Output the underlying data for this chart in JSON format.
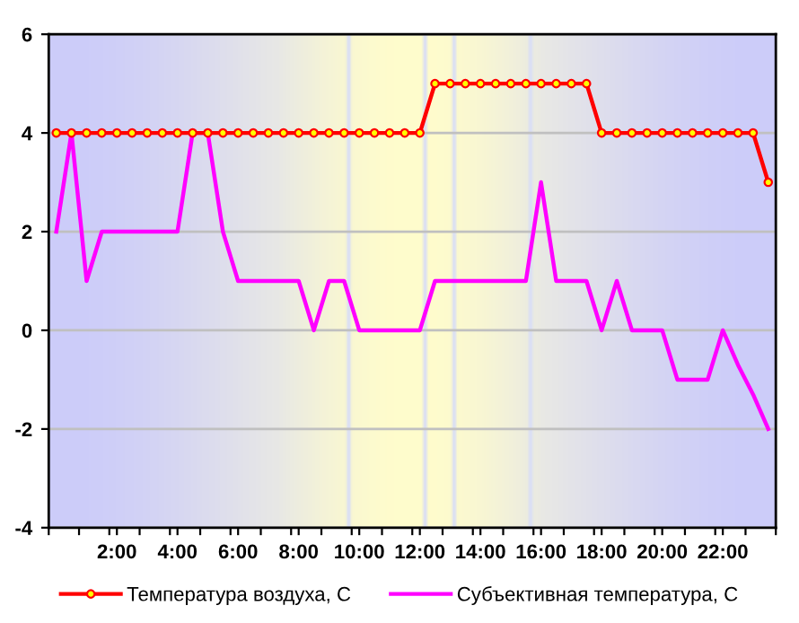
{
  "chart_data": {
    "type": "line",
    "x": [
      0,
      0.5,
      1,
      1.5,
      2,
      2.5,
      3,
      3.5,
      4,
      4.5,
      5,
      5.5,
      6,
      6.5,
      7,
      7.5,
      8,
      8.5,
      9,
      9.5,
      10,
      10.5,
      11,
      11.5,
      12,
      12.5,
      13,
      13.5,
      14,
      14.5,
      15,
      15.5,
      16,
      16.5,
      17,
      17.5,
      18,
      18.5,
      19,
      19.5,
      20,
      20.5,
      21,
      21.5,
      22,
      22.5,
      23,
      23.5
    ],
    "series": [
      {
        "name": "Температура воздуха, С",
        "color": "#ff0000",
        "marker": "circle",
        "values": [
          4,
          4,
          4,
          4,
          4,
          4,
          4,
          4,
          4,
          4,
          4,
          4,
          4,
          4,
          4,
          4,
          4,
          4,
          4,
          4,
          4,
          4,
          4,
          4,
          4,
          5,
          5,
          5,
          5,
          5,
          5,
          5,
          5,
          5,
          5,
          5,
          4,
          4,
          4,
          4,
          4,
          4,
          4,
          4,
          4,
          4,
          4,
          3
        ]
      },
      {
        "name": "Субъективная температура, С",
        "color": "#ff00ff",
        "marker": "none",
        "values": [
          2,
          4,
          1,
          2,
          2,
          2,
          2,
          2,
          2,
          4,
          4,
          2,
          1,
          1,
          1,
          1,
          1,
          0,
          1,
          1,
          0,
          0,
          0,
          0,
          0,
          1,
          1,
          1,
          1,
          1,
          1,
          1,
          3,
          1,
          1,
          1,
          0,
          1,
          0,
          0,
          0,
          -1,
          -1,
          -1,
          0,
          -0.7,
          -1.3,
          -2
        ]
      }
    ],
    "xlim": [
      -0.25,
      23.75
    ],
    "xticks": [
      {
        "value": -0.25,
        "label": null
      },
      {
        "value": 0.75,
        "label": null
      },
      {
        "value": 1.75,
        "label": null
      },
      {
        "value": 2,
        "label": "2:00"
      },
      {
        "value": 2.75,
        "label": null
      },
      {
        "value": 3.75,
        "label": null
      },
      {
        "value": 4,
        "label": "4:00"
      },
      {
        "value": 4.75,
        "label": null
      },
      {
        "value": 5.75,
        "label": null
      },
      {
        "value": 6,
        "label": "6:00"
      },
      {
        "value": 6.75,
        "label": null
      },
      {
        "value": 7.75,
        "label": null
      },
      {
        "value": 8,
        "label": "8:00"
      },
      {
        "value": 8.75,
        "label": null
      },
      {
        "value": 9.75,
        "label": null
      },
      {
        "value": 10,
        "label": "10:00"
      },
      {
        "value": 10.75,
        "label": null
      },
      {
        "value": 11.75,
        "label": null
      },
      {
        "value": 12,
        "label": "12:00"
      },
      {
        "value": 12.75,
        "label": null
      },
      {
        "value": 13.75,
        "label": null
      },
      {
        "value": 14,
        "label": "14:00"
      },
      {
        "value": 14.75,
        "label": null
      },
      {
        "value": 15.75,
        "label": null
      },
      {
        "value": 16,
        "label": "16:00"
      },
      {
        "value": 16.75,
        "label": null
      },
      {
        "value": 17.75,
        "label": null
      },
      {
        "value": 18,
        "label": "18:00"
      },
      {
        "value": 18.75,
        "label": null
      },
      {
        "value": 19.75,
        "label": null
      },
      {
        "value": 20,
        "label": "20:00"
      },
      {
        "value": 20.75,
        "label": null
      },
      {
        "value": 21.75,
        "label": null
      },
      {
        "value": 22,
        "label": "22:00"
      },
      {
        "value": 22.75,
        "label": null
      },
      {
        "value": 23.75,
        "label": null
      }
    ],
    "ylim": [
      -4,
      6
    ],
    "yticks": [
      -4,
      -2,
      0,
      2,
      4,
      6
    ],
    "grid": "y",
    "legend": "bottom"
  }
}
